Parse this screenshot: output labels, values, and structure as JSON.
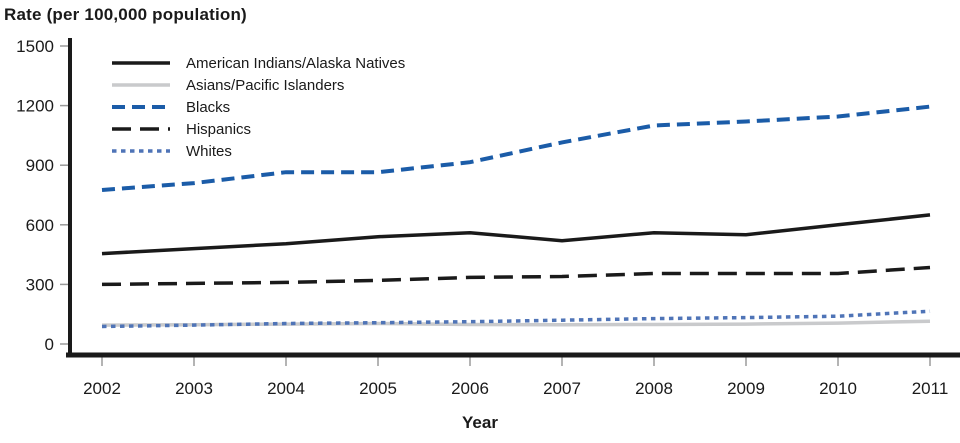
{
  "title": "Rate (per 100,000 population)",
  "xlabel": "Year",
  "colors": {
    "axis": "#1a1a1a",
    "tick_mark": "#9a9a9a",
    "text": "#1a1a1a",
    "blue_dashed": "#1b5ca8",
    "blue_dotted": "#4f74b7",
    "gray_line": "#c9cacc",
    "black_line": "#1a1a1a"
  },
  "legend": {
    "items": [
      {
        "label": "American Indians/Alaska Natives",
        "style": "solid",
        "color": "#1a1a1a"
      },
      {
        "label": "Asians/Pacific Islanders",
        "style": "solid",
        "color": "#c9cacc"
      },
      {
        "label": "Blacks",
        "style": "dashed",
        "color": "#1b5ca8"
      },
      {
        "label": "Hispanics",
        "style": "long-dash",
        "color": "#1a1a1a"
      },
      {
        "label": "Whites",
        "style": "dotted",
        "color": "#4f74b7"
      }
    ]
  },
  "chart_data": {
    "type": "line",
    "title": "Rate (per 100,000 population)",
    "xlabel": "Year",
    "ylabel": "Rate (per 100,000 population)",
    "x": [
      2002,
      2003,
      2004,
      2005,
      2006,
      2007,
      2008,
      2009,
      2010,
      2011
    ],
    "xtick_labels": [
      "2002",
      "2003",
      "2004",
      "2005",
      "2006",
      "2007",
      "2008",
      "2009",
      "2010",
      "2011"
    ],
    "yticks": [
      0,
      300,
      600,
      900,
      1200,
      1500
    ],
    "ylim": [
      0,
      1500
    ],
    "grid": false,
    "legend_position": "top-left-inside",
    "series": [
      {
        "name": "American Indians/Alaska Natives",
        "style": "solid",
        "color": "#1a1a1a",
        "values": [
          455,
          480,
          505,
          540,
          560,
          520,
          560,
          550,
          600,
          650
        ]
      },
      {
        "name": "Asians/Pacific Islanders",
        "style": "solid",
        "color": "#c9cacc",
        "values": [
          95,
          97,
          100,
          103,
          98,
          97,
          98,
          100,
          105,
          115
        ]
      },
      {
        "name": "Blacks",
        "style": "dashed",
        "color": "#1b5ca8",
        "values": [
          775,
          810,
          865,
          865,
          915,
          1015,
          1100,
          1120,
          1145,
          1195
        ]
      },
      {
        "name": "Hispanics",
        "style": "long-dash",
        "color": "#1a1a1a",
        "values": [
          300,
          305,
          310,
          320,
          335,
          340,
          355,
          355,
          355,
          385
        ]
      },
      {
        "name": "Whites",
        "style": "dotted",
        "color": "#4f74b7",
        "values": [
          88,
          95,
          103,
          107,
          112,
          120,
          128,
          133,
          140,
          165
        ]
      }
    ]
  }
}
